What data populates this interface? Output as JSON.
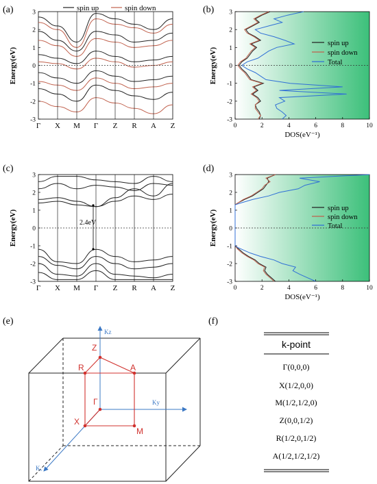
{
  "panels": {
    "a": "(a)",
    "b": "(b)",
    "c": "(c)",
    "d": "(d)",
    "e": "(e)",
    "f": "(f)"
  },
  "colors": {
    "spin_up": "#222222",
    "spin_down": "#c0604c",
    "total": "#2f6fd6",
    "fill_green": "#3cc07a",
    "diagram_red": "#d0312d",
    "axis_blue": "#3b78c4"
  },
  "chart_data": [
    {
      "id": "a",
      "type": "line",
      "ylabel": "Energy(eV)",
      "ylim": [
        -3,
        3
      ],
      "yticks": [
        "-3",
        "-2",
        "-1",
        "0",
        "1",
        "2",
        "3"
      ],
      "xticks": [
        "Γ",
        "X",
        "M",
        "Γ",
        "Z",
        "R",
        "A",
        "Z"
      ],
      "legend": [
        "spin up",
        "spin down"
      ],
      "legend_position": "top",
      "fermi_level": 0,
      "series": [
        {
          "name": "spin up",
          "y": [
            2.7,
            2.2,
            1.3,
            2.9,
            2.6,
            2.3,
            2.0,
            2.6
          ]
        },
        {
          "name": "spin up",
          "y": [
            1.9,
            1.4,
            0.8,
            1.9,
            1.7,
            1.3,
            1.4,
            1.8
          ]
        },
        {
          "name": "spin up",
          "y": [
            0.6,
            0.4,
            0.1,
            0.8,
            0.5,
            0.2,
            0.3,
            0.5
          ]
        },
        {
          "name": "spin up",
          "y": [
            -0.4,
            -0.7,
            -1.0,
            -0.3,
            -0.6,
            -0.9,
            -0.8,
            -0.6
          ]
        },
        {
          "name": "spin up",
          "y": [
            -1.3,
            -1.6,
            -2.0,
            -1.1,
            -1.4,
            -1.7,
            -1.9,
            -1.5
          ]
        },
        {
          "name": "spin down",
          "y": [
            2.4,
            2.0,
            1.0,
            2.6,
            2.3,
            2.1,
            1.8,
            2.3
          ]
        },
        {
          "name": "spin down",
          "y": [
            1.4,
            1.1,
            0.5,
            1.5,
            1.3,
            1.0,
            1.1,
            1.4
          ]
        },
        {
          "name": "spin down",
          "y": [
            0.2,
            0.1,
            -0.2,
            0.4,
            0.2,
            -0.1,
            0.0,
            0.2
          ]
        },
        {
          "name": "spin down",
          "y": [
            -0.9,
            -1.1,
            -1.4,
            -0.7,
            -1.0,
            -1.3,
            -1.2,
            -1.0
          ]
        },
        {
          "name": "spin down",
          "y": [
            -2.0,
            -2.3,
            -2.6,
            -1.8,
            -2.1,
            -2.4,
            -2.7,
            -2.2
          ]
        }
      ]
    },
    {
      "id": "b",
      "type": "line",
      "ylabel": "Energy(eV)",
      "xlabel": "DOS(eV⁻¹)",
      "xlim": [
        0,
        10
      ],
      "ylim": [
        -3,
        3
      ],
      "xticks": [
        "0",
        "2",
        "4",
        "6",
        "8",
        "10"
      ],
      "yticks": [
        "-3",
        "-2",
        "-1",
        "0",
        "1",
        "2",
        "3"
      ],
      "legend": [
        "spin up",
        "spin down",
        "Total"
      ],
      "legend_position": "right",
      "fermi_level": 0,
      "energy": [
        -3.0,
        -2.8,
        -2.6,
        -2.4,
        -2.2,
        -2.0,
        -1.8,
        -1.6,
        -1.4,
        -1.2,
        -1.0,
        -0.8,
        -0.6,
        -0.4,
        -0.2,
        0.0,
        0.2,
        0.4,
        0.6,
        0.8,
        1.0,
        1.2,
        1.4,
        1.6,
        1.8,
        2.0,
        2.2,
        2.4,
        2.6,
        2.8,
        3.0
      ],
      "series": [
        {
          "name": "spin up",
          "x": [
            1.8,
            1.9,
            1.8,
            1.6,
            1.5,
            1.9,
            1.7,
            1.3,
            1.7,
            1.4,
            2.1,
            1.2,
            1.0,
            0.8,
            0.5,
            0.3,
            0.5,
            0.9,
            1.1,
            1.3,
            1.6,
            1.2,
            1.9,
            1.5,
            1.0,
            0.8,
            1.3,
            1.8,
            1.5,
            2.0,
            2.6
          ]
        },
        {
          "name": "spin down",
          "x": [
            1.7,
            1.9,
            1.7,
            1.5,
            1.5,
            1.8,
            1.6,
            1.2,
            1.6,
            1.3,
            2.0,
            1.1,
            0.9,
            0.7,
            0.4,
            0.2,
            0.4,
            0.8,
            1.0,
            1.2,
            1.5,
            1.1,
            1.8,
            1.4,
            0.9,
            0.7,
            1.2,
            1.7,
            1.4,
            1.9,
            2.5
          ]
        },
        {
          "name": "Total",
          "x": [
            3.5,
            3.8,
            3.5,
            3.1,
            3.0,
            3.7,
            3.3,
            8.3,
            3.3,
            8.0,
            4.1,
            2.3,
            1.9,
            1.5,
            0.9,
            0.5,
            0.9,
            1.7,
            2.1,
            2.5,
            3.1,
            4.4,
            3.7,
            2.9,
            1.9,
            1.5,
            2.5,
            3.5,
            2.9,
            3.9,
            5.1
          ]
        }
      ]
    },
    {
      "id": "c",
      "type": "line",
      "ylabel": "Energy(eV)",
      "ylim": [
        -3,
        3
      ],
      "yticks": [
        "-3",
        "-2",
        "-1",
        "0",
        "1",
        "2",
        "3"
      ],
      "xticks": [
        "Γ",
        "X",
        "M",
        "Γ",
        "Z",
        "R",
        "A",
        "Z"
      ],
      "fermi_level": 0,
      "annotation": "2.4eV",
      "series": [
        {
          "y": [
            2.6,
            2.9,
            2.9,
            2.7,
            2.6,
            2.5,
            2.9,
            2.6
          ]
        },
        {
          "y": [
            2.2,
            2.5,
            2.2,
            2.4,
            2.3,
            2.1,
            2.5,
            2.4
          ]
        },
        {
          "y": [
            1.6,
            1.7,
            1.5,
            1.2,
            1.7,
            2.2,
            1.8,
            2.5
          ]
        },
        {
          "y": [
            1.4,
            1.5,
            1.3,
            1.2,
            1.5,
            1.8,
            1.6,
            1.9
          ]
        },
        {
          "y": [
            -1.2,
            -1.9,
            -2.0,
            -1.2,
            -1.6,
            -1.9,
            -1.8,
            -1.6
          ]
        },
        {
          "y": [
            -1.6,
            -2.1,
            -2.3,
            -1.6,
            -2.0,
            -2.3,
            -2.2,
            -2.0
          ]
        },
        {
          "y": [
            -2.0,
            -2.6,
            -2.7,
            -2.0,
            -2.6,
            -2.7,
            -2.8,
            -2.6
          ]
        },
        {
          "y": [
            -2.5,
            -2.9,
            -2.9,
            -2.4,
            -2.9,
            -2.9,
            -2.9,
            -2.9
          ]
        }
      ]
    },
    {
      "id": "d",
      "type": "line",
      "ylabel": "Energy(eV)",
      "xlabel": "DOS(eV⁻¹)",
      "xlim": [
        0,
        10
      ],
      "ylim": [
        -3,
        3
      ],
      "xticks": [
        "0",
        "2",
        "4",
        "6",
        "8",
        "10"
      ],
      "yticks": [
        "-3",
        "-2",
        "-1",
        "0",
        "1",
        "2",
        "3"
      ],
      "legend": [
        "spin up",
        "spin down",
        "Total"
      ],
      "legend_position": "right",
      "fermi_level": 0,
      "energy": [
        -3.0,
        -2.8,
        -2.6,
        -2.4,
        -2.2,
        -2.0,
        -1.8,
        -1.6,
        -1.4,
        -1.2,
        -1.1,
        -1.0,
        1.3,
        1.4,
        1.6,
        1.8,
        2.0,
        2.2,
        2.4,
        2.6,
        2.8,
        3.0
      ],
      "series": [
        {
          "name": "spin up",
          "x": [
            3.0,
            2.7,
            2.4,
            2.2,
            2.3,
            1.8,
            1.5,
            1.0,
            0.6,
            0.3,
            0.1,
            0.0,
            0.0,
            0.2,
            0.7,
            1.3,
            1.7,
            2.1,
            2.3,
            2.5,
            2.4,
            3.0
          ]
        },
        {
          "name": "spin down",
          "x": [
            2.9,
            2.6,
            2.3,
            2.1,
            2.2,
            1.7,
            1.4,
            0.9,
            0.5,
            0.2,
            0.1,
            0.0,
            0.0,
            0.2,
            0.6,
            1.2,
            1.6,
            2.0,
            2.2,
            2.6,
            2.3,
            3.0
          ]
        },
        {
          "name": "Total",
          "x": [
            6.0,
            5.4,
            4.8,
            4.3,
            4.5,
            3.5,
            2.9,
            1.9,
            1.1,
            0.5,
            0.2,
            0.0,
            0.0,
            0.4,
            1.3,
            2.5,
            3.3,
            4.7,
            5.2,
            6.3,
            4.8,
            10.0
          ]
        }
      ]
    }
  ],
  "diagram": {
    "axis_labels": {
      "kz": "Kz",
      "ky": "Ky",
      "kx": "Kₓ"
    },
    "points": {
      "Z": "Z",
      "R": "R",
      "A": "A",
      "Gamma": "Γ",
      "X": "X",
      "M": "M"
    }
  },
  "table": {
    "header": "k-point",
    "rows": [
      "Γ(0,0,0)",
      "X(1/2,0,0)",
      "M(1/2,1/2,0)",
      "Z(0,0,1/2)",
      "R(1/2,0,1/2)",
      "A(1/2,1/2,1/2)"
    ]
  }
}
